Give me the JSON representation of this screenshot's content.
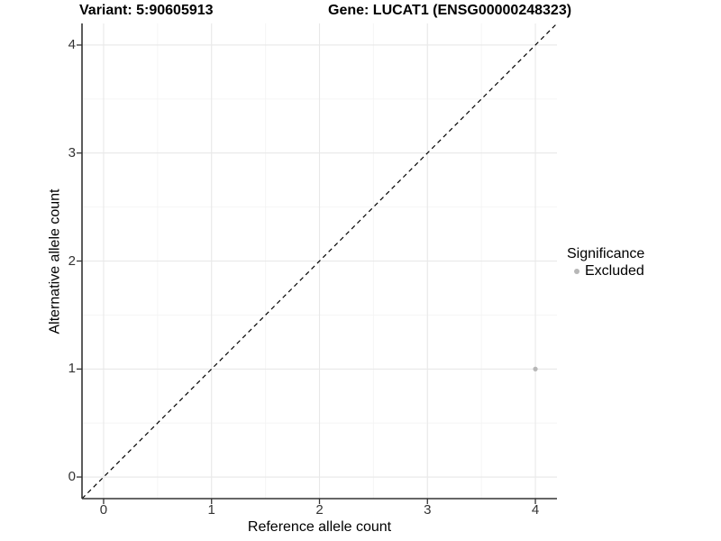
{
  "header": {
    "variant_title": "Variant: 5:90605913",
    "gene_title": "Gene: LUCAT1 (ENSG00000248323)"
  },
  "axes": {
    "x_label": "Reference allele count",
    "y_label": "Alternative allele count"
  },
  "legend": {
    "title": "Significance",
    "items": [
      {
        "label": "Excluded",
        "color": "#b7b7b7"
      }
    ]
  },
  "chart_data": {
    "type": "scatter",
    "title": "Variant: 5:90605913    Gene: LUCAT1 (ENSG00000248323)",
    "xlabel": "Reference allele count",
    "ylabel": "Alternative allele count",
    "xlim": [
      -0.2,
      4.2
    ],
    "ylim": [
      -0.2,
      4.2
    ],
    "x_ticks": [
      0,
      1,
      2,
      3,
      4
    ],
    "y_ticks": [
      0,
      1,
      2,
      3,
      4
    ],
    "grid": {
      "major": true,
      "minor": true
    },
    "legend_position": "right",
    "reference_line": {
      "style": "dashed",
      "slope": 1,
      "intercept": 0,
      "color": "#000000"
    },
    "series": [
      {
        "name": "Excluded",
        "color": "#b7b7b7",
        "points": [
          {
            "x": 4,
            "y": 1
          }
        ]
      }
    ]
  },
  "style": {
    "grid_major_color": "#e8e8e8",
    "grid_minor_color": "#f4f4f4",
    "axis_color": "#333333",
    "tick_label_color": "#333333",
    "background": "#ffffff",
    "point_radius": 2.6,
    "dash_pattern": "5 4"
  }
}
